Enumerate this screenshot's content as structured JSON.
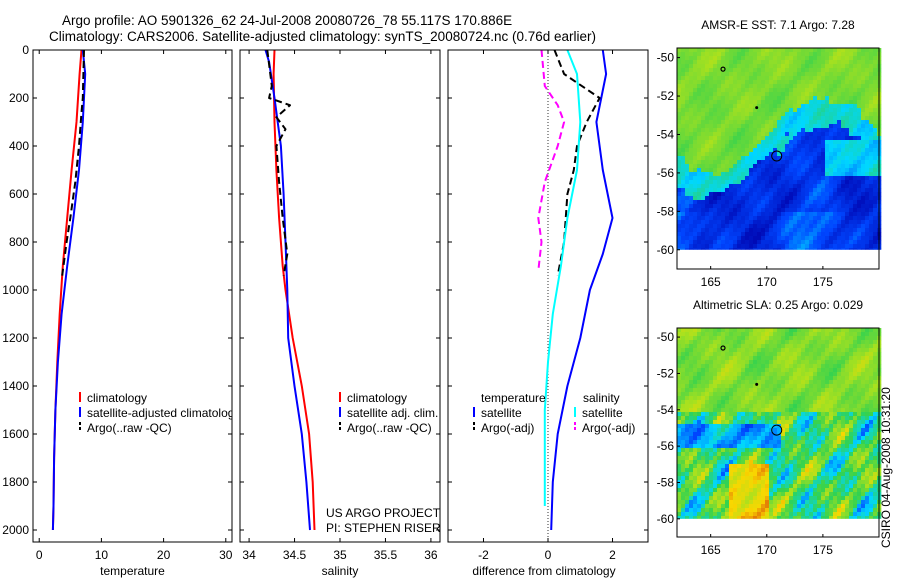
{
  "header": {
    "line1": "Argo profile: AO 5901326_62 24-Jul-2008 20080726_78 55.117S 170.886E",
    "line2": "Climatology: CARS2006. Satellite-adjusted climatology: synTS_20080724.nc (0.76d earlier)"
  },
  "side_text": "CSIRO 04-Aug-2008 10:31:20",
  "credit": {
    "line1": "US ARGO PROJECT",
    "line2": "PI: STEPHEN RISER"
  },
  "colors": {
    "climatology": "#ff0000",
    "satellite": "#0000ff",
    "argo": "#000000",
    "cyan": "#00ffff",
    "magenta": "#ff00ff"
  },
  "chart_data": [
    {
      "type": "line",
      "xlabel": "temperature",
      "xlim": [
        -1,
        31
      ],
      "ylim": [
        2050,
        0
      ],
      "xticks": [
        0,
        10,
        20,
        30
      ],
      "yticks": [
        0,
        200,
        400,
        600,
        800,
        1000,
        1200,
        1400,
        1600,
        1800,
        2000
      ],
      "legend": [
        "climatology",
        "satellite-adjusted climatology",
        "Argo(..raw -QC)"
      ],
      "series": [
        {
          "name": "climatology",
          "color": "red",
          "style": "solid",
          "x": [
            6.8,
            6.5,
            6.0,
            5.2,
            4.5,
            3.8,
            3.3,
            2.9,
            2.6,
            2.4,
            2.3,
            2.2
          ],
          "y": [
            0,
            100,
            300,
            500,
            700,
            900,
            1100,
            1300,
            1500,
            1700,
            1900,
            2000
          ]
        },
        {
          "name": "satellite-adjusted climatology",
          "color": "blue",
          "style": "solid",
          "x": [
            7.0,
            7.4,
            7.0,
            6.4,
            5.5,
            4.5,
            3.6,
            3.0,
            2.6,
            2.4,
            2.3,
            2.2
          ],
          "y": [
            0,
            100,
            300,
            500,
            700,
            900,
            1100,
            1300,
            1500,
            1700,
            1900,
            2000
          ]
        },
        {
          "name": "Argo(..raw -QC)",
          "color": "black",
          "style": "dashed",
          "x": [
            7.2,
            7.0,
            6.8,
            6.4,
            5.8,
            5.0,
            4.4,
            4.0,
            3.7
          ],
          "y": [
            0,
            200,
            260,
            400,
            550,
            700,
            800,
            880,
            940
          ]
        }
      ]
    },
    {
      "type": "line",
      "xlabel": "salinity",
      "xlim": [
        33.9,
        36.1
      ],
      "ylim": [
        2050,
        0
      ],
      "xticks": [
        34,
        34.5,
        35,
        35.5,
        36
      ],
      "legend": [
        "climatology",
        "satellite adj. clim.",
        "Argo(..raw -QC)"
      ],
      "series": [
        {
          "name": "climatology",
          "color": "red",
          "style": "solid",
          "x": [
            34.28,
            34.27,
            34.28,
            34.3,
            34.33,
            34.37,
            34.4,
            34.48,
            34.58,
            34.66,
            34.7,
            34.72
          ],
          "y": [
            0,
            100,
            300,
            500,
            700,
            900,
            1000,
            1200,
            1400,
            1600,
            1800,
            2000
          ]
        },
        {
          "name": "satellite adj. clim.",
          "color": "blue",
          "style": "solid",
          "x": [
            34.18,
            34.22,
            34.28,
            34.35,
            34.38,
            34.4,
            34.42,
            34.43,
            34.5,
            34.58,
            34.63,
            34.67
          ],
          "y": [
            0,
            50,
            200,
            400,
            600,
            800,
            1000,
            1200,
            1400,
            1600,
            1800,
            2000
          ]
        },
        {
          "name": "Argo(..raw -QC)",
          "color": "black",
          "style": "dashed",
          "x": [
            34.2,
            34.25,
            34.22,
            34.45,
            34.3,
            34.4,
            34.3,
            34.33,
            34.37,
            34.42,
            34.38
          ],
          "y": [
            0,
            150,
            200,
            230,
            280,
            330,
            400,
            550,
            700,
            850,
            940
          ]
        }
      ]
    },
    {
      "type": "line",
      "xlabel": "difference from climatology",
      "xlim": [
        -3.1,
        3.1
      ],
      "ylim": [
        2050,
        0
      ],
      "xticks": [
        -2,
        0,
        2
      ],
      "legend_groups": [
        {
          "title": "temperature",
          "items": [
            "satellite",
            "Argo(-adj)"
          ]
        },
        {
          "title": "salinity",
          "items": [
            "satellite",
            "Argo(-adj)"
          ]
        }
      ],
      "series": [
        {
          "name": "satellite",
          "group": "temperature",
          "color": "blue",
          "style": "solid",
          "x": [
            1.7,
            1.8,
            1.5,
            1.7,
            2.0,
            1.7,
            1.3,
            1.0,
            0.6,
            0.3,
            0.15,
            0.1
          ],
          "y": [
            0,
            100,
            300,
            500,
            700,
            850,
            1000,
            1200,
            1400,
            1600,
            1800,
            2000
          ]
        },
        {
          "name": "Argo(-adj)",
          "group": "temperature",
          "color": "black",
          "style": "dashed",
          "x": [
            0.2,
            0.5,
            1.6,
            1.2,
            0.9,
            0.8,
            0.6,
            0.5,
            0.3
          ],
          "y": [
            0,
            100,
            200,
            300,
            400,
            500,
            600,
            800,
            940
          ]
        },
        {
          "name": "satellite",
          "group": "salinity",
          "color": "cyan",
          "style": "solid",
          "x": [
            0.6,
            0.9,
            1.0,
            0.9,
            0.6,
            0.4,
            0.15,
            0.0,
            -0.1,
            -0.1,
            -0.1
          ],
          "y": [
            0,
            100,
            300,
            500,
            700,
            900,
            1100,
            1300,
            1500,
            1700,
            1900
          ]
        },
        {
          "name": "Argo(-adj)",
          "group": "salinity",
          "color": "magenta",
          "style": "dashed",
          "x": [
            -0.2,
            -0.1,
            0.3,
            0.5,
            0.3,
            -0.1,
            -0.3,
            -0.2,
            -0.3
          ],
          "y": [
            0,
            150,
            230,
            300,
            400,
            550,
            700,
            800,
            920
          ]
        }
      ]
    }
  ],
  "maps": [
    {
      "title": "AMSR-E SST: 7.1 Argo: 7.28",
      "xticks": [
        165,
        170,
        175
      ],
      "yticks": [
        -50,
        -52,
        -54,
        -56,
        -58,
        -60
      ]
    },
    {
      "title": "Altimetric SLA: 0.25 Argo: 0.029",
      "xticks": [
        165,
        170,
        175
      ],
      "yticks": [
        -50,
        -52,
        -54,
        -56,
        -58,
        -60
      ]
    }
  ]
}
